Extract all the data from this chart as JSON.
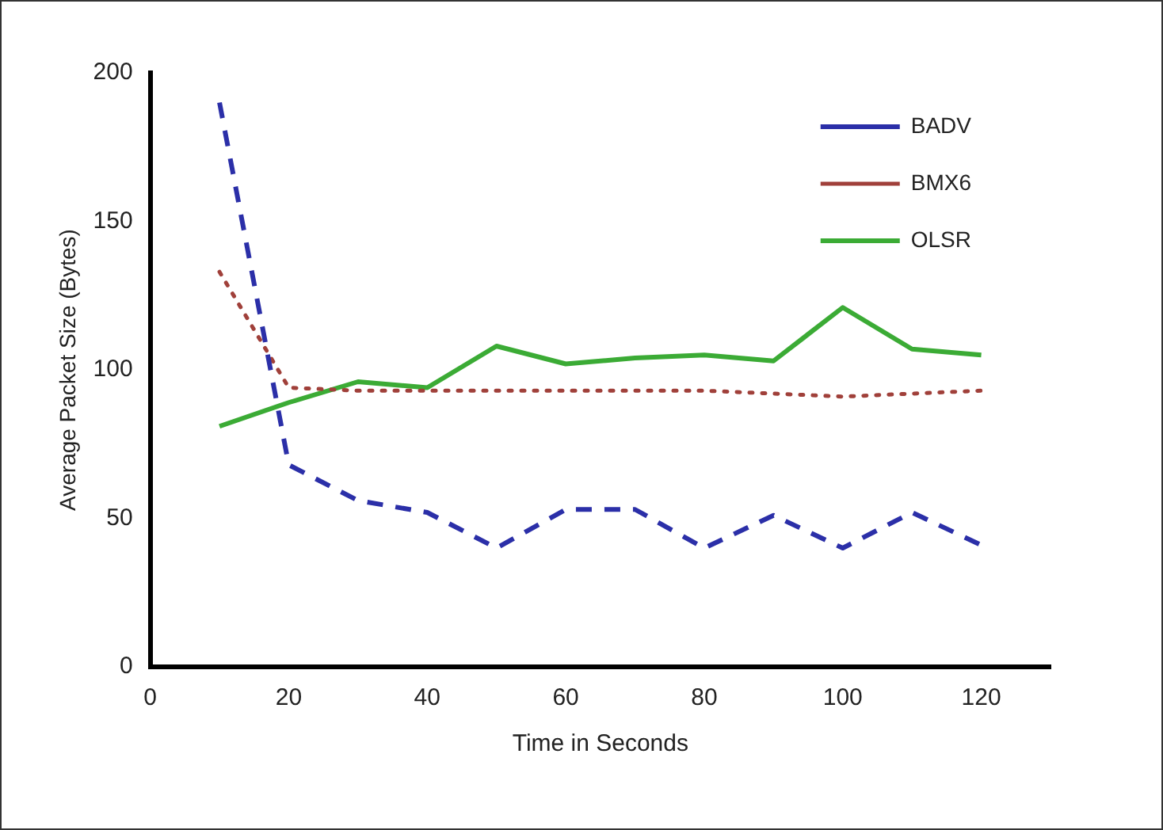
{
  "chart_data": {
    "type": "line",
    "xlabel": "Time in Seconds",
    "ylabel": "Average Packet Size (Bytes)",
    "x": [
      10,
      20,
      30,
      40,
      50,
      60,
      70,
      80,
      90,
      100,
      110,
      120
    ],
    "series": [
      {
        "name": "BADV",
        "color": "#2b2fa8",
        "line_style": "dashed",
        "values": [
          190,
          68,
          56,
          52,
          40,
          53,
          53,
          40,
          51,
          40,
          52,
          41
        ]
      },
      {
        "name": "BMX6",
        "color": "#a0403a",
        "line_style": "dotted",
        "values": [
          133,
          94,
          93,
          93,
          93,
          93,
          93,
          93,
          92,
          91,
          92,
          93
        ]
      },
      {
        "name": "OLSR",
        "color": "#3bab35",
        "line_style": "solid",
        "values": [
          81,
          89,
          96,
          94,
          108,
          102,
          104,
          105,
          103,
          121,
          107,
          105
        ]
      }
    ],
    "xlim": [
      0,
      130
    ],
    "xticks": [
      0,
      20,
      40,
      60,
      80,
      100,
      120
    ],
    "ylim": [
      0,
      200
    ],
    "yticks": [
      0,
      50,
      100,
      150,
      200
    ],
    "grid": false,
    "legend": "top right",
    "marker": "none"
  }
}
